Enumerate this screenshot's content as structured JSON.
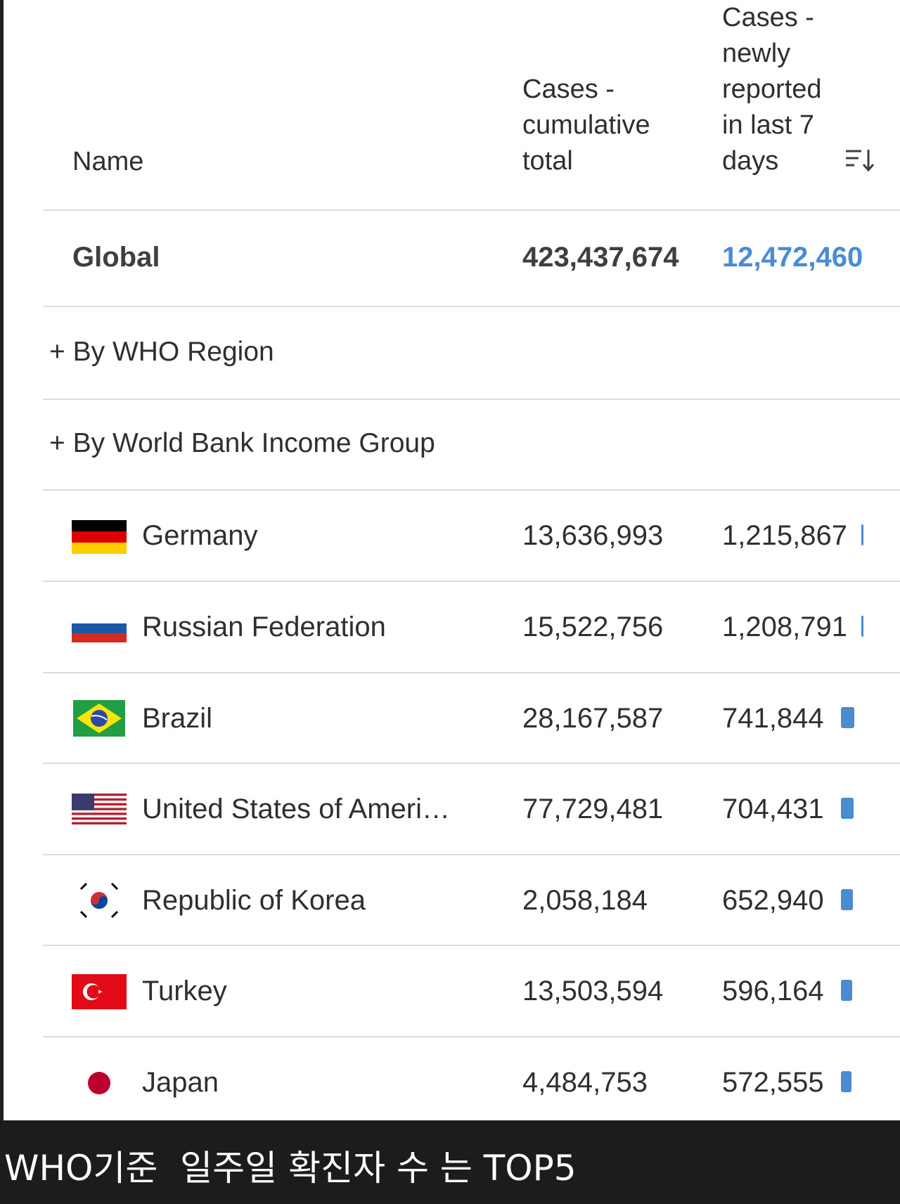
{
  "columns": {
    "name": "Name",
    "cumulative": "Cases - cumulative total",
    "cumulative_lines": [
      "Cases -",
      "cumulative",
      "total"
    ],
    "new7": "Cases - newly reported in last 7 days",
    "new7_lines": [
      "Cases -",
      "newly",
      "reported",
      "in last 7",
      "days"
    ],
    "sort_icon": "sort-descending-icon"
  },
  "global": {
    "name": "Global",
    "cumulative": "423,437,674",
    "new7": "12,472,460",
    "new7_color": "#4a8bd4"
  },
  "expanders": [
    {
      "label": "+ By WHO Region"
    },
    {
      "label": "+ By World Bank Income Group"
    }
  ],
  "countries": [
    {
      "name": "Germany",
      "cumulative": "13,636,993",
      "new7": "1,215,867",
      "flag": "germany-flag-icon",
      "bar_level": 0.1
    },
    {
      "name": "Russian Federation",
      "cumulative": "15,522,756",
      "new7": "1,208,791",
      "flag": "russia-flag-icon",
      "bar_level": 0.1
    },
    {
      "name": "Brazil",
      "cumulative": "28,167,587",
      "new7": "741,844",
      "flag": "brazil-flag-icon",
      "bar_level": 0.06
    },
    {
      "name": "United States of Ameri…",
      "cumulative": "77,729,481",
      "new7": "704,431",
      "flag": "usa-flag-icon",
      "bar_level": 0.056
    },
    {
      "name": "Republic of Korea",
      "cumulative": "2,058,184",
      "new7": "652,940",
      "flag": "korea-flag-icon",
      "bar_level": 0.052
    },
    {
      "name": "Turkey",
      "cumulative": "13,503,594",
      "new7": "596,164",
      "flag": "turkey-flag-icon",
      "bar_level": 0.048
    },
    {
      "name": "Japan",
      "cumulative": "4,484,753",
      "new7": "572,555",
      "flag": "japan-flag-icon",
      "bar_level": 0.046
    }
  ],
  "accent_color": "#4a8bd4",
  "caption": "WHO기준  일주일 확진자 수 는 TOP5"
}
